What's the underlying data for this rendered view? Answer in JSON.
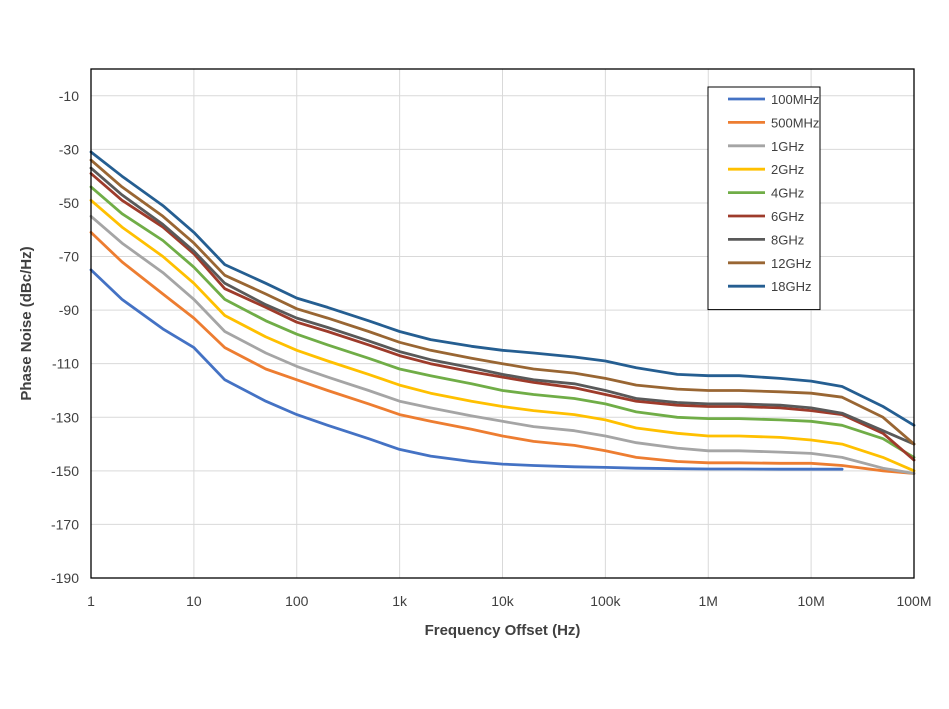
{
  "chart_data": {
    "type": "line",
    "xscale": "log",
    "xlabel": "Frequency Offset (Hz)",
    "ylabel": "Phase Noise (dBc/Hz)",
    "xlim": [
      1,
      100000000
    ],
    "ylim": [
      -190,
      0
    ],
    "xticks": [
      1,
      10,
      100,
      1000,
      10000,
      100000,
      1000000,
      10000000,
      100000000
    ],
    "xtick_labels": [
      "1",
      "10",
      "100",
      "1k",
      "10k",
      "100k",
      "1M",
      "10M",
      "100M"
    ],
    "yticks": [
      -10,
      -30,
      -50,
      -70,
      -90,
      -110,
      -130,
      -150,
      -170,
      -190
    ],
    "ytick_labels": [
      "-10",
      "-30",
      "-50",
      "-70",
      "-90",
      "-110",
      "-130",
      "-150",
      "-170",
      "-190"
    ],
    "grid": true,
    "legend_position": "top-right",
    "x": [
      1,
      2,
      5,
      10,
      20,
      50,
      100,
      200,
      500,
      1000,
      2000,
      5000,
      10000,
      20000,
      50000,
      100000,
      200000,
      500000,
      1000000,
      2000000,
      5000000,
      10000000,
      20000000,
      50000000,
      100000000
    ],
    "series": [
      {
        "name": "100MHz",
        "color": "#4472C4",
        "values": [
          -75,
          -86,
          -97,
          -104,
          -116,
          -124,
          -129,
          -133,
          -138,
          -142,
          -144.5,
          -146.5,
          -147.5,
          -148,
          -148.5,
          -148.7,
          -149,
          -149.2,
          -149.3,
          -149.3,
          -149.4,
          -149.4,
          -149.4,
          null,
          null
        ]
      },
      {
        "name": "500MHz",
        "color": "#ED7D31",
        "values": [
          -61,
          -72,
          -84,
          -93,
          -104,
          -112,
          -116,
          -120,
          -125,
          -129,
          -131.5,
          -134.5,
          -137,
          -139,
          -140.5,
          -142.5,
          -145,
          -146.5,
          -147,
          -147,
          -147.2,
          -147.2,
          -148,
          -150,
          -151
        ]
      },
      {
        "name": "1GHz",
        "color": "#A5A5A5",
        "values": [
          -55,
          -65,
          -76,
          -86,
          -98,
          -106,
          -111,
          -115,
          -120,
          -124,
          -126.5,
          -129.5,
          -131.5,
          -133.5,
          -135,
          -137,
          -139.5,
          -141.5,
          -142.5,
          -142.5,
          -143,
          -143.5,
          -145,
          -149,
          -151
        ]
      },
      {
        "name": "2GHz",
        "color": "#FFC000",
        "values": [
          -49,
          -59,
          -70,
          -80,
          -92,
          -100,
          -105,
          -109,
          -114,
          -118,
          -121,
          -124,
          -126,
          -127.5,
          -129,
          -131,
          -134,
          -136,
          -137,
          -137,
          -137.5,
          -138.5,
          -140,
          -145,
          -150
        ]
      },
      {
        "name": "4GHz",
        "color": "#70AD47",
        "values": [
          -44,
          -54,
          -64,
          -74,
          -86,
          -94,
          -99,
          -103,
          -108,
          -112,
          -114.5,
          -117.5,
          -120,
          -121.5,
          -123,
          -125,
          -128,
          -130,
          -130.5,
          -130.5,
          -131,
          -131.5,
          -133,
          -138,
          -145
        ]
      },
      {
        "name": "6GHz",
        "color": "#9E3B2B",
        "values": [
          -39,
          -49,
          -59,
          -69,
          -82,
          -89,
          -94.5,
          -98,
          -103,
          -107,
          -110,
          -113,
          -115,
          -117,
          -119,
          -121.5,
          -124,
          -125.5,
          -126,
          -126,
          -126.5,
          -127.5,
          -129,
          -136,
          -146
        ]
      },
      {
        "name": "8GHz",
        "color": "#595959",
        "values": [
          -37,
          -47,
          -58,
          -68,
          -80,
          -88,
          -93,
          -96.5,
          -101.5,
          -105.5,
          -108.5,
          -111.5,
          -114,
          -116,
          -117.5,
          -120,
          -123,
          -124.5,
          -125,
          -125,
          -125.5,
          -126.5,
          -128.5,
          -135,
          -140
        ]
      },
      {
        "name": "12GHz",
        "color": "#996633",
        "values": [
          -34,
          -44,
          -55,
          -65,
          -77,
          -84,
          -89.5,
          -93,
          -98,
          -102,
          -105,
          -108,
          -110,
          -112,
          -113.5,
          -115.5,
          -118,
          -119.5,
          -120,
          -120,
          -120.5,
          -121,
          -122.5,
          -130,
          -140
        ]
      },
      {
        "name": "18GHz",
        "color": "#255E91",
        "values": [
          -31,
          -40,
          -51,
          -61,
          -73,
          -80,
          -85.5,
          -89,
          -94,
          -98,
          -101,
          -103.5,
          -105,
          -106,
          -107.5,
          -109,
          -111.5,
          -114,
          -114.5,
          -114.5,
          -115.5,
          -116.5,
          -118.5,
          -126,
          -133
        ]
      }
    ]
  }
}
